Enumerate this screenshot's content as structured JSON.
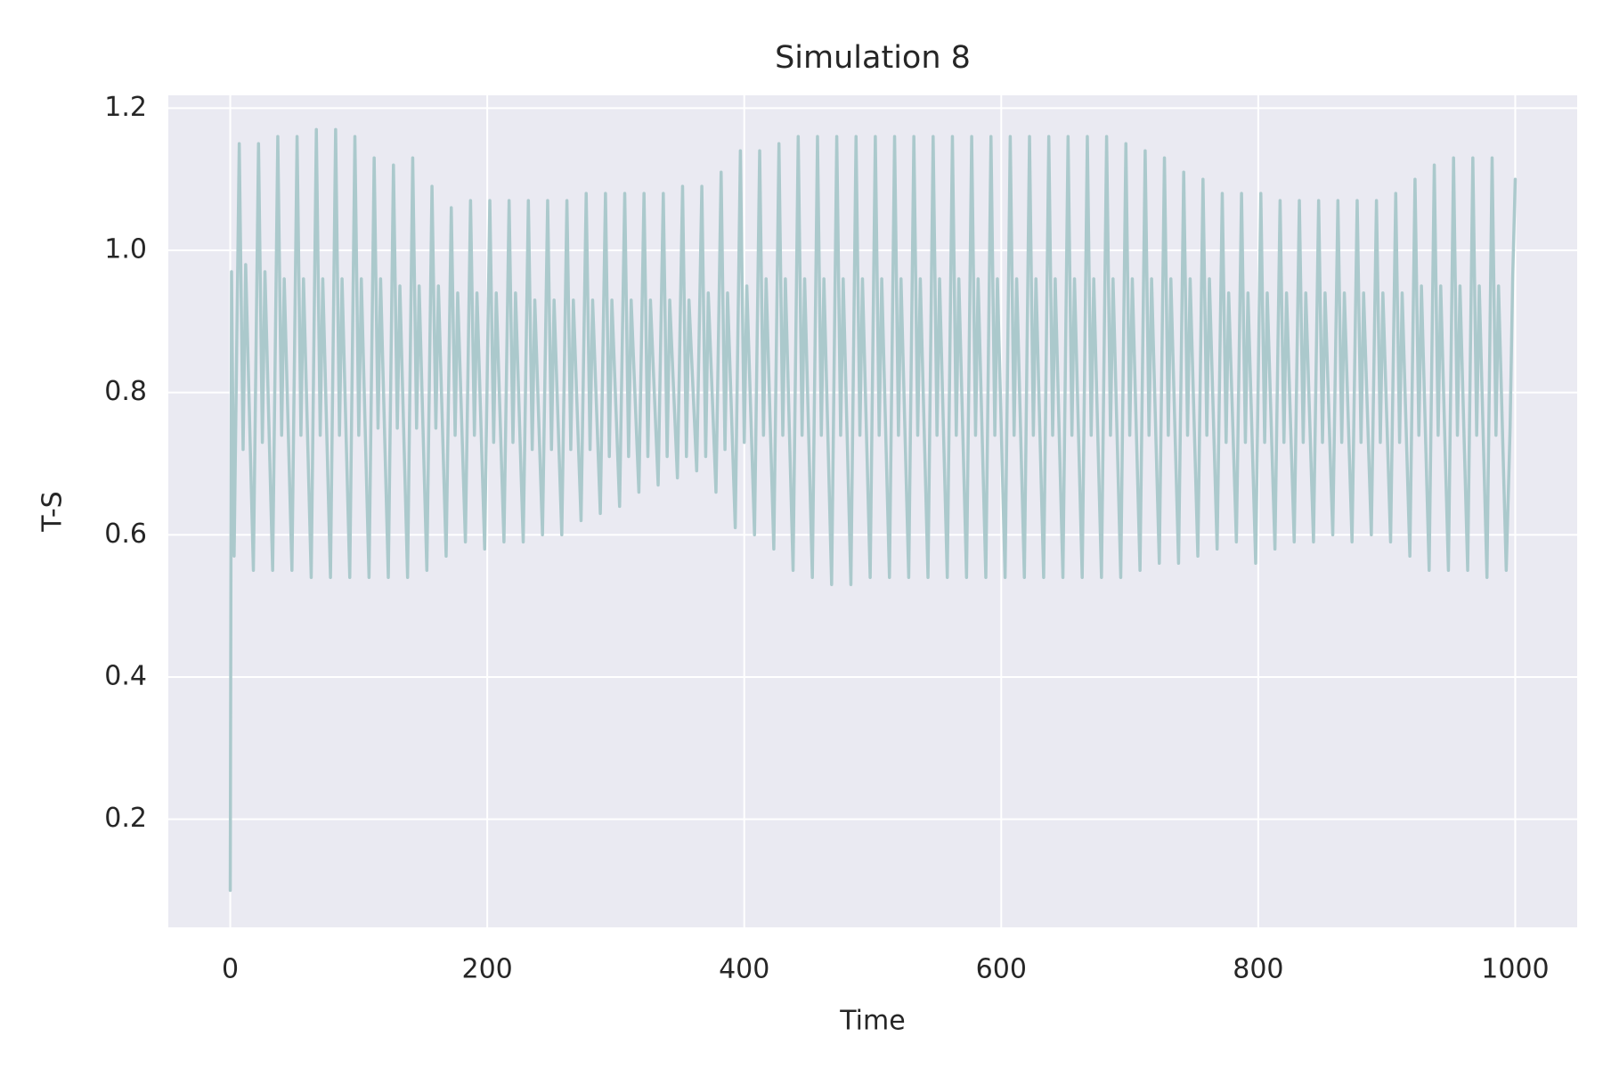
{
  "chart_data": {
    "type": "line",
    "title": "Simulation 8",
    "xlabel": "Time",
    "ylabel": "T-S",
    "xlim": [
      -48.2,
      1048.2
    ],
    "ylim": [
      0.048,
      1.218
    ],
    "xticks": [
      0,
      200,
      400,
      600,
      800,
      1000
    ],
    "yticks": [
      0.2,
      0.4,
      0.6,
      0.8,
      {
        "value": 1,
        "label": "1.0"
      },
      1.2
    ],
    "grid": true,
    "x": [
      0,
      1,
      3,
      7,
      10,
      12,
      18,
      22,
      25,
      27,
      33,
      37,
      40,
      42,
      48,
      52,
      55,
      57,
      63,
      67,
      70,
      72,
      78,
      82,
      85,
      87,
      93,
      97,
      100,
      102,
      108,
      112,
      115,
      117,
      123,
      127,
      130,
      132,
      138,
      142,
      145,
      147,
      153,
      157,
      160,
      162,
      168,
      172,
      175,
      177,
      183,
      187,
      190,
      192,
      198,
      202,
      205,
      207,
      213,
      217,
      220,
      222,
      228,
      232,
      235,
      237,
      243,
      247,
      250,
      252,
      258,
      262,
      265,
      267,
      273,
      277,
      280,
      282,
      288,
      292,
      295,
      297,
      303,
      307,
      310,
      312,
      318,
      322,
      325,
      327,
      333,
      337,
      340,
      342,
      348,
      352,
      355,
      357,
      363,
      367,
      370,
      372,
      378,
      382,
      385,
      387,
      393,
      397,
      400,
      402,
      408,
      412,
      415,
      417,
      423,
      427,
      430,
      432,
      438,
      442,
      445,
      447,
      453,
      457,
      460,
      462,
      468,
      472,
      475,
      477,
      483,
      487,
      490,
      492,
      498,
      502,
      505,
      507,
      513,
      517,
      520,
      522,
      528,
      532,
      535,
      537,
      543,
      547,
      550,
      552,
      558,
      562,
      565,
      567,
      573,
      577,
      580,
      582,
      588,
      592,
      595,
      597,
      603,
      607,
      610,
      612,
      618,
      622,
      625,
      627,
      633,
      637,
      640,
      642,
      648,
      652,
      655,
      657,
      663,
      667,
      670,
      672,
      678,
      682,
      685,
      687,
      693,
      697,
      700,
      702,
      708,
      712,
      715,
      717,
      723,
      727,
      730,
      732,
      738,
      742,
      745,
      747,
      753,
      757,
      760,
      762,
      768,
      772,
      775,
      777,
      783,
      787,
      790,
      792,
      798,
      802,
      805,
      807,
      813,
      817,
      820,
      822,
      828,
      832,
      835,
      837,
      843,
      847,
      850,
      852,
      858,
      862,
      865,
      867,
      873,
      877,
      880,
      882,
      888,
      892,
      895,
      897,
      903,
      907,
      910,
      912,
      918,
      922,
      925,
      927,
      933,
      937,
      940,
      942,
      948,
      952,
      955,
      957,
      963,
      967,
      970,
      972,
      978,
      982,
      985,
      987,
      993,
      996,
      998,
      1000
    ],
    "series": [
      {
        "color": "#abc9cc",
        "values": [
          0.1,
          0.97,
          0.57,
          1.15,
          0.72,
          0.98,
          0.55,
          1.15,
          0.73,
          0.97,
          0.55,
          1.16,
          0.74,
          0.96,
          0.55,
          1.16,
          0.74,
          0.96,
          0.54,
          1.17,
          0.74,
          0.96,
          0.54,
          1.17,
          0.74,
          0.96,
          0.54,
          1.16,
          0.74,
          0.96,
          0.54,
          1.13,
          0.75,
          0.96,
          0.54,
          1.12,
          0.75,
          0.95,
          0.54,
          1.13,
          0.75,
          0.95,
          0.55,
          1.09,
          0.75,
          0.95,
          0.57,
          1.06,
          0.74,
          0.94,
          0.59,
          1.07,
          0.74,
          0.94,
          0.58,
          1.07,
          0.73,
          0.94,
          0.59,
          1.07,
          0.73,
          0.94,
          0.59,
          1.07,
          0.72,
          0.93,
          0.6,
          1.07,
          0.72,
          0.93,
          0.6,
          1.07,
          0.72,
          0.93,
          0.62,
          1.08,
          0.72,
          0.93,
          0.63,
          1.08,
          0.71,
          0.93,
          0.64,
          1.08,
          0.71,
          0.93,
          0.66,
          1.08,
          0.71,
          0.93,
          0.67,
          1.08,
          0.71,
          0.93,
          0.68,
          1.09,
          0.71,
          0.93,
          0.69,
          1.09,
          0.71,
          0.94,
          0.66,
          1.11,
          0.72,
          0.94,
          0.61,
          1.14,
          0.73,
          0.95,
          0.6,
          1.14,
          0.74,
          0.96,
          0.58,
          1.15,
          0.74,
          0.96,
          0.55,
          1.16,
          0.74,
          0.96,
          0.54,
          1.16,
          0.74,
          0.96,
          0.53,
          1.16,
          0.74,
          0.96,
          0.53,
          1.16,
          0.74,
          0.96,
          0.54,
          1.16,
          0.74,
          0.96,
          0.54,
          1.16,
          0.74,
          0.96,
          0.54,
          1.16,
          0.74,
          0.96,
          0.54,
          1.16,
          0.74,
          0.96,
          0.54,
          1.16,
          0.74,
          0.96,
          0.54,
          1.16,
          0.74,
          0.96,
          0.54,
          1.16,
          0.74,
          0.96,
          0.54,
          1.16,
          0.74,
          0.96,
          0.54,
          1.16,
          0.74,
          0.96,
          0.54,
          1.16,
          0.74,
          0.96,
          0.54,
          1.16,
          0.74,
          0.96,
          0.54,
          1.16,
          0.74,
          0.96,
          0.54,
          1.16,
          0.74,
          0.96,
          0.54,
          1.15,
          0.74,
          0.96,
          0.55,
          1.14,
          0.74,
          0.96,
          0.56,
          1.13,
          0.74,
          0.96,
          0.56,
          1.11,
          0.74,
          0.96,
          0.57,
          1.1,
          0.74,
          0.96,
          0.58,
          1.08,
          0.73,
          0.94,
          0.59,
          1.08,
          0.73,
          0.94,
          0.56,
          1.08,
          0.73,
          0.94,
          0.58,
          1.07,
          0.73,
          0.94,
          0.59,
          1.07,
          0.73,
          0.94,
          0.59,
          1.07,
          0.73,
          0.94,
          0.6,
          1.07,
          0.73,
          0.94,
          0.59,
          1.07,
          0.73,
          0.94,
          0.6,
          1.07,
          0.73,
          0.94,
          0.59,
          1.08,
          0.73,
          0.94,
          0.57,
          1.1,
          0.74,
          0.95,
          0.55,
          1.12,
          0.74,
          0.95,
          0.55,
          1.13,
          0.74,
          0.95,
          0.55,
          1.13,
          0.74,
          0.95,
          0.54,
          1.13,
          0.74,
          0.95,
          0.55,
          0.75,
          0.96,
          1.1
        ]
      }
    ]
  }
}
